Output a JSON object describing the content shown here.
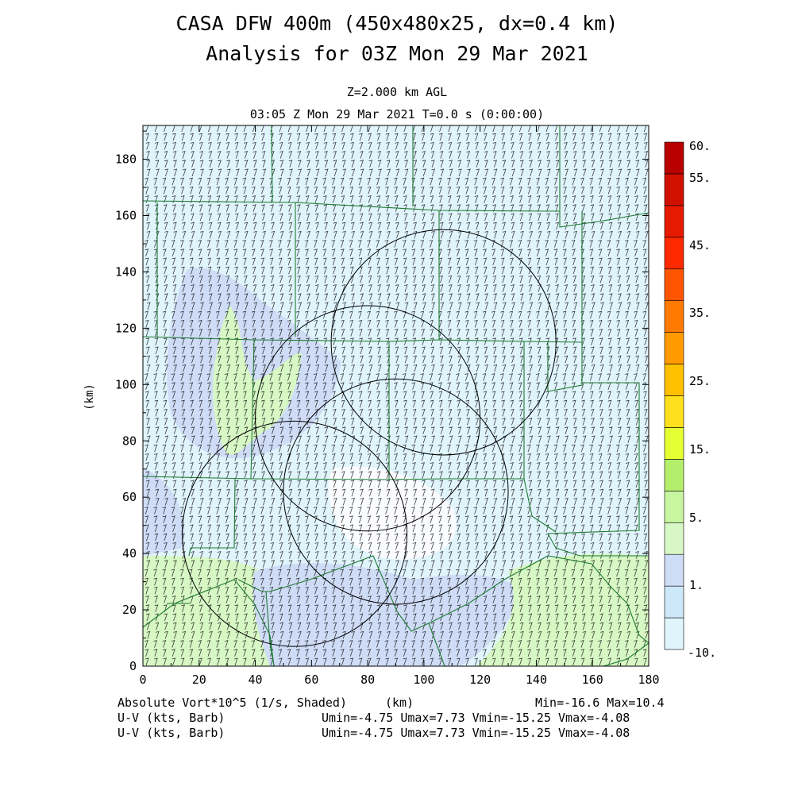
{
  "header": {
    "title_line1": "CASA DFW 400m (450x480x25, dx=0.4 km)",
    "title_line2": "Analysis for 03Z Mon 29 Mar 2021",
    "level": "Z=2.000 km AGL",
    "valid_time": "03:05 Z Mon 29 Mar 2021    T=0.0 s (0:00:00)"
  },
  "axes": {
    "x_label": "(km)",
    "y_label": "(km)",
    "x_ticks": [
      "0",
      "20",
      "40",
      "60",
      "80",
      "100",
      "120",
      "140",
      "160",
      "180"
    ],
    "y_ticks": [
      "0",
      "20",
      "40",
      "60",
      "80",
      "100",
      "120",
      "140",
      "160",
      "180"
    ],
    "x_range": [
      0,
      180
    ],
    "y_range": [
      0,
      192
    ]
  },
  "colorbar": {
    "labels": [
      "60.",
      "55.",
      "45.",
      "35.",
      "25.",
      "15.",
      "5.",
      "1.",
      "-10."
    ],
    "colors": [
      "#e0f4fc",
      "#cde8f8",
      "#cfdcf6",
      "#d7f7c4",
      "#c8f5a0",
      "#b4ef6c",
      "#e6ff32",
      "#ffe01e",
      "#ffc000",
      "#ff9a00",
      "#ff7a00",
      "#ff5500",
      "#ff2a00",
      "#e61a00",
      "#d01000",
      "#b80000"
    ]
  },
  "footer": {
    "field_name": "Absolute Vort*10^5 (1/s, Shaded)",
    "x_unit": "(km)",
    "minmax": "Min=-16.6 Max=10.4",
    "vector1_name": "U-V (kts, Barb)",
    "vector1_stats": "Umin=-4.75 Umax=7.73 Vmin=-15.25 Vmax=-4.08",
    "vector2_name": "U-V (kts, Barb)",
    "vector2_stats": "Umin=-4.75 Umax=7.73 Vmin=-15.25 Vmax=-4.08"
  },
  "map": {
    "background_color": "#e0f4fc",
    "county_line_color": "#1e7a32",
    "range_ring_color": "#000000",
    "barb_color": "#000000",
    "radar_rings_km": [
      {
        "cx": 107,
        "cy": 115,
        "r": 40
      },
      {
        "cx": 80,
        "cy": 88,
        "r": 40
      },
      {
        "cx": 90,
        "cy": 62,
        "r": 40
      },
      {
        "cx": 54,
        "cy": 47,
        "r": 40
      }
    ]
  }
}
